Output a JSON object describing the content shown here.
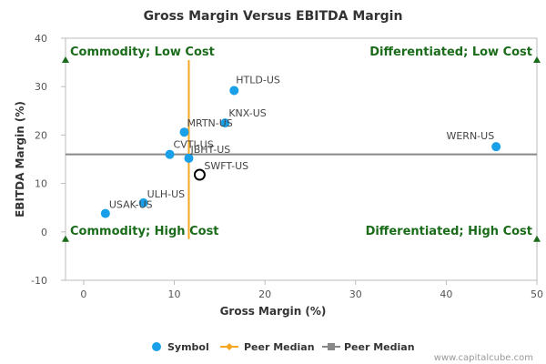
{
  "chart_data": {
    "type": "scatter",
    "title": "Gross Margin Versus EBITDA Margin",
    "xlabel": "Gross Margin (%)",
    "ylabel": "EBITDA Margin (%)",
    "xlim": [
      -2,
      50
    ],
    "ylim": [
      -10,
      40
    ],
    "xticks": [
      "0",
      "10",
      "20",
      "30",
      "40",
      "50"
    ],
    "yticks": [
      "40",
      "30",
      "20",
      "10",
      "0",
      "-10"
    ],
    "grid": false,
    "points": [
      {
        "label": "HTLD-US",
        "x": 16.6,
        "y": 29.2
      },
      {
        "label": "KNX-US",
        "x": 15.6,
        "y": 22.5
      },
      {
        "label": "MRTN-US",
        "x": 11.1,
        "y": 20.6
      },
      {
        "label": "CVTI-US",
        "x": 9.5,
        "y": 16.0
      },
      {
        "label": "JBHT-US",
        "x": 11.6,
        "y": 15.2
      },
      {
        "label": "ULH-US",
        "x": 6.6,
        "y": 6.0
      },
      {
        "label": "USAK-US",
        "x": 2.4,
        "y": 3.8
      },
      {
        "label": "WERN-US",
        "x": 45.5,
        "y": 17.6
      }
    ],
    "highlight": {
      "label": "SWFT-US",
      "x": 12.8,
      "y": 11.8
    },
    "peer_median_x": 11.6,
    "peer_median_y": 16.0,
    "quadrants": {
      "top_left": "Commodity; Low Cost",
      "top_right": "Differentiated; Low Cost",
      "bottom_left": "Commodity; High Cost",
      "bottom_right": "Differentiated; High Cost"
    },
    "legend": [
      "Symbol",
      "Peer Median",
      "Peer Median"
    ],
    "legend_placement": "bottom",
    "colors": {
      "symbol": "#1aa0e8",
      "peer_median_x": "#f5a623",
      "peer_median_y": "#888888",
      "quadrant": "#1a6b1a"
    }
  },
  "footer": "www.capitalcube.com"
}
